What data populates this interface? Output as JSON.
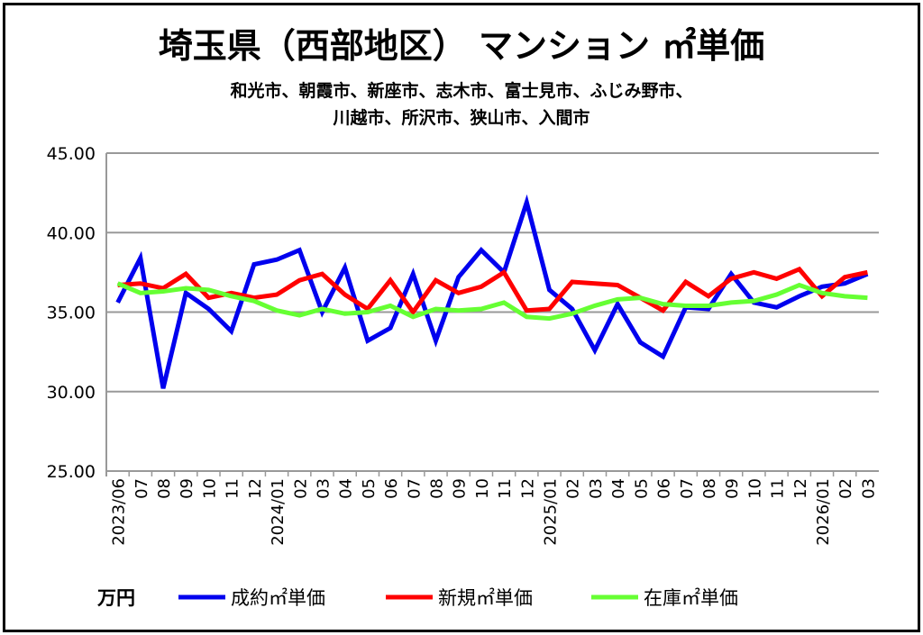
{
  "chart_data": {
    "type": "line",
    "title": "埼玉県（西部地区） マンション ㎡単価",
    "subtitle": [
      "和光市、朝霞市、新座市、志木市、富士見市、ふじみ野市、",
      "川越市、所沢市、狭山市、入間市"
    ],
    "ylabel": "万円",
    "xlabel": "",
    "ylim": [
      25,
      45
    ],
    "yticks": [
      "25.00",
      "30.00",
      "35.00",
      "40.00",
      "45.00"
    ],
    "grid": true,
    "legend_placement": "bottom",
    "x": [
      "2023/06",
      "07",
      "08",
      "09",
      "10",
      "11",
      "12",
      "2024/01",
      "02",
      "03",
      "04",
      "05",
      "06",
      "07",
      "08",
      "09",
      "10",
      "11",
      "12",
      "2025/01",
      "02",
      "03",
      "04",
      "05",
      "06",
      "07",
      "08",
      "09",
      "10",
      "11",
      "12",
      "2026/01",
      "02",
      "03"
    ],
    "series": [
      {
        "name": "成約㎡単価",
        "color": "#0000ee",
        "values": [
          35.6,
          38.4,
          30.2,
          36.2,
          35.2,
          33.8,
          38.0,
          38.3,
          38.9,
          35.0,
          37.8,
          33.2,
          34.0,
          37.4,
          33.2,
          37.2,
          38.9,
          37.5,
          41.9,
          36.4,
          35.2,
          32.6,
          35.5,
          33.1,
          32.2,
          35.3,
          35.2,
          37.4,
          35.6,
          35.3,
          36.0,
          36.6,
          36.8,
          37.4
        ]
      },
      {
        "name": "新規㎡単価",
        "color": "#ff0000",
        "values": [
          36.7,
          36.8,
          36.5,
          37.4,
          35.9,
          36.2,
          35.9,
          36.1,
          37.0,
          37.4,
          36.1,
          35.2,
          37.0,
          35.0,
          37.0,
          36.2,
          36.6,
          37.5,
          35.1,
          35.2,
          36.9,
          36.8,
          36.7,
          35.9,
          35.1,
          36.9,
          36.0,
          37.1,
          37.5,
          37.1,
          37.7,
          36.0,
          37.2,
          37.5
        ]
      },
      {
        "name": "在庫㎡単価",
        "color": "#66ff33",
        "values": [
          36.8,
          36.2,
          36.3,
          36.5,
          36.4,
          36.0,
          35.7,
          35.1,
          34.8,
          35.2,
          34.9,
          35.0,
          35.4,
          34.7,
          35.2,
          35.1,
          35.2,
          35.6,
          34.7,
          34.6,
          34.9,
          35.4,
          35.8,
          35.9,
          35.5,
          35.4,
          35.4,
          35.6,
          35.7,
          36.1,
          36.7,
          36.2,
          36.0,
          35.9
        ]
      }
    ]
  }
}
